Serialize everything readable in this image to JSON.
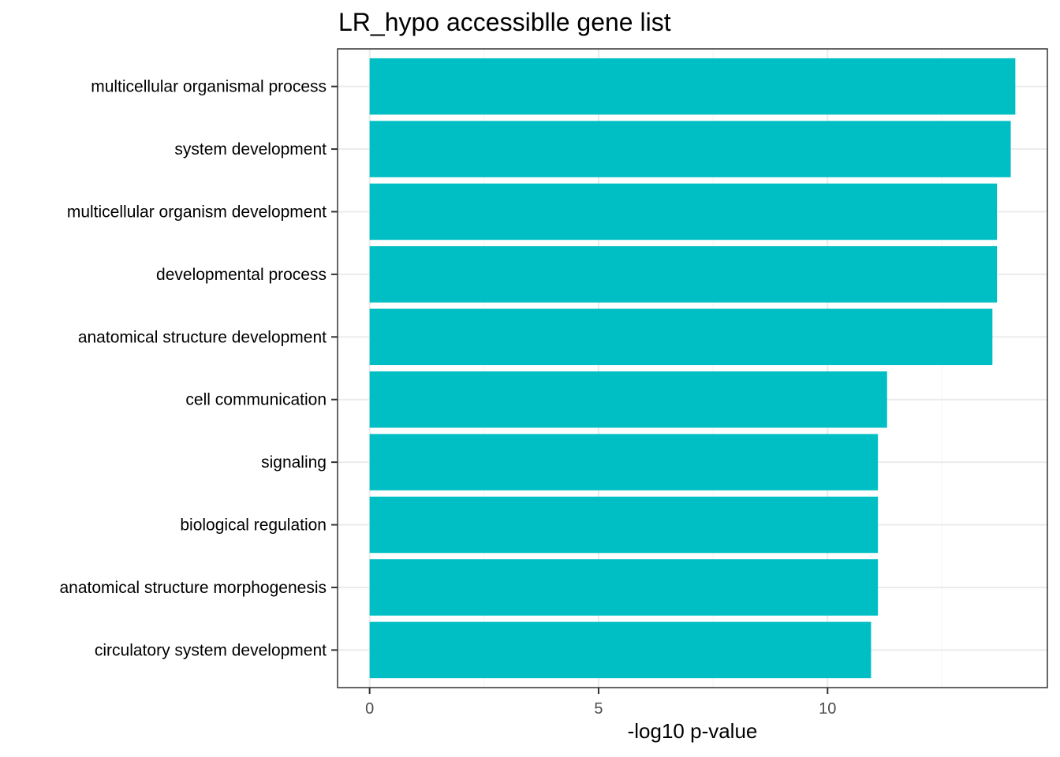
{
  "chart_data": {
    "type": "bar",
    "orientation": "horizontal",
    "title": "LR_hypo accessiblle gene list",
    "xlabel": "-log10 p-value",
    "ylabel": "",
    "categories": [
      "multicellular organismal process",
      "system development",
      "multicellular organism development",
      "developmental process",
      "anatomical structure development",
      "cell communication",
      "signaling",
      "biological regulation",
      "anatomical structure morphogenesis",
      "circulatory system development"
    ],
    "values": [
      14.1,
      14.0,
      13.7,
      13.7,
      13.6,
      11.3,
      11.1,
      11.1,
      11.1,
      10.95
    ],
    "xlim": [
      -0.7,
      14.8
    ],
    "xticks": [
      0,
      5,
      10
    ],
    "xtick_labels": [
      "0",
      "5",
      "10"
    ],
    "grid": true,
    "legend": "none",
    "colors": {
      "bar": "#00BFC4",
      "panel_border": "#333333",
      "grid_major": "#EBEBEB",
      "grid_minor": "#F5F5F5",
      "tick_text": "#4D4D4D",
      "label_text": "#000000"
    }
  }
}
